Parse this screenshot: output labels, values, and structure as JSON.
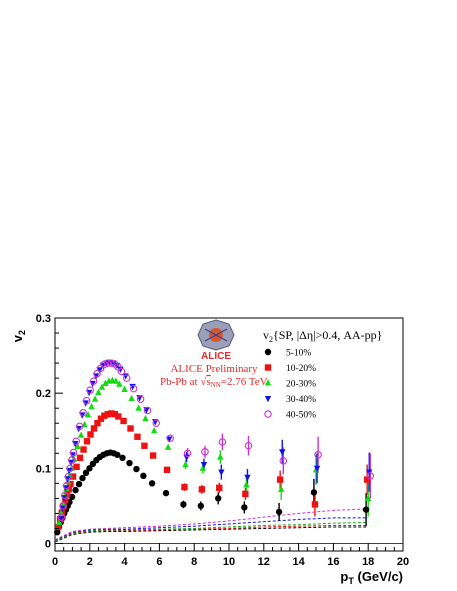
{
  "chart_data": {
    "type": "scatter",
    "xlabel_main": "p",
    "xlabel_sub": "T",
    "xlabel_unit": " (GeV/c)",
    "ylabel_main": "v",
    "ylabel_sub": "2",
    "xlim": [
      0,
      20
    ],
    "ylim": [
      -0.01,
      0.3
    ],
    "xticks": [
      "0",
      "2",
      "4",
      "6",
      "8",
      "10",
      "12",
      "14",
      "16",
      "18",
      "20"
    ],
    "xtick_values": [
      0,
      2,
      4,
      6,
      8,
      10,
      12,
      14,
      16,
      18,
      20
    ],
    "yticks": [
      "0",
      "0.1",
      "0.2",
      "0.3"
    ],
    "ytick_values": [
      0,
      0.1,
      0.2,
      0.3
    ],
    "grid": false,
    "legend_title": "v2{SP, |Δη|>0.4, AA-pp}",
    "legend_title_v": "v",
    "legend_title_sub": "2",
    "legend_title_rest": "{SP, |Δη|>0.4, AA-pp}",
    "legend_placement": "top-right",
    "annotations": {
      "logo": "ALICE",
      "line1": "ALICE Preliminary",
      "line2_a": "Pb-Pb at ",
      "line2_b": "s",
      "line2_c": "NN",
      "line2_d": "=2.76 TeV"
    },
    "series": [
      {
        "name": "5-10%",
        "color": "#000000",
        "marker": "circle",
        "x": [
          0.25,
          0.35,
          0.45,
          0.55,
          0.65,
          0.75,
          0.85,
          0.95,
          1.1,
          1.3,
          1.5,
          1.7,
          1.9,
          2.1,
          2.3,
          2.5,
          2.7,
          2.9,
          3.1,
          3.3,
          3.5,
          3.7,
          4.0,
          4.4,
          4.8,
          5.2,
          5.7,
          6.5,
          7.5,
          8.5,
          9.5,
          11.0,
          13.0,
          15.0,
          18.0
        ],
        "y": [
          0.015,
          0.022,
          0.028,
          0.034,
          0.04,
          0.045,
          0.05,
          0.055,
          0.062,
          0.071,
          0.079,
          0.087,
          0.094,
          0.1,
          0.106,
          0.111,
          0.115,
          0.118,
          0.12,
          0.121,
          0.12,
          0.118,
          0.114,
          0.107,
          0.099,
          0.09,
          0.08,
          0.067,
          0.052,
          0.05,
          0.06,
          0.048,
          0.042,
          0.068,
          0.045
        ],
        "err": [
          0,
          0,
          0,
          0,
          0,
          0,
          0,
          0,
          0,
          0,
          0,
          0,
          0,
          0,
          0,
          0,
          0,
          0,
          0,
          0,
          0,
          0,
          0,
          0,
          0,
          0,
          0,
          0,
          0.005,
          0.006,
          0.008,
          0.008,
          0.012,
          0.018,
          0.022
        ]
      },
      {
        "name": "10-20%",
        "color": "#ee1111",
        "marker": "square",
        "x": [
          0.25,
          0.35,
          0.45,
          0.55,
          0.65,
          0.75,
          0.85,
          0.95,
          1.1,
          1.3,
          1.5,
          1.7,
          1.9,
          2.1,
          2.3,
          2.5,
          2.7,
          2.9,
          3.1,
          3.3,
          3.5,
          3.7,
          4.0,
          4.4,
          4.8,
          5.2,
          5.7,
          6.5,
          7.5,
          8.5,
          9.5,
          11.0,
          13.0,
          15.0,
          18.0
        ],
        "y": [
          0.022,
          0.032,
          0.041,
          0.05,
          0.058,
          0.065,
          0.072,
          0.079,
          0.089,
          0.102,
          0.114,
          0.125,
          0.136,
          0.145,
          0.153,
          0.16,
          0.166,
          0.17,
          0.172,
          0.173,
          0.172,
          0.169,
          0.163,
          0.153,
          0.142,
          0.13,
          0.117,
          0.098,
          0.075,
          0.072,
          0.074,
          0.066,
          0.085,
          0.052,
          0.085
        ],
        "err": [
          0,
          0,
          0,
          0,
          0,
          0,
          0,
          0,
          0,
          0,
          0,
          0,
          0,
          0,
          0,
          0,
          0,
          0,
          0,
          0,
          0,
          0,
          0,
          0,
          0,
          0,
          0,
          0,
          0.005,
          0.006,
          0.007,
          0.008,
          0.012,
          0.016,
          0.02
        ]
      },
      {
        "name": "20-30%",
        "color": "#11dd11",
        "marker": "triangle-up",
        "x": [
          0.25,
          0.35,
          0.45,
          0.55,
          0.65,
          0.75,
          0.85,
          0.95,
          1.1,
          1.3,
          1.5,
          1.7,
          1.9,
          2.1,
          2.3,
          2.5,
          2.7,
          2.9,
          3.1,
          3.3,
          3.5,
          3.7,
          4.0,
          4.4,
          4.8,
          5.2,
          5.7,
          6.5,
          7.5,
          8.5,
          9.5,
          11.0,
          13.0,
          15.0,
          18.0
        ],
        "y": [
          0.028,
          0.04,
          0.052,
          0.063,
          0.073,
          0.082,
          0.091,
          0.1,
          0.112,
          0.129,
          0.144,
          0.158,
          0.171,
          0.182,
          0.192,
          0.201,
          0.208,
          0.213,
          0.216,
          0.217,
          0.216,
          0.212,
          0.205,
          0.193,
          0.18,
          0.166,
          0.15,
          0.128,
          0.105,
          0.1,
          0.115,
          0.078,
          0.072,
          0.098,
          0.06
        ],
        "err": [
          0,
          0,
          0,
          0,
          0,
          0,
          0,
          0,
          0,
          0,
          0,
          0,
          0,
          0,
          0,
          0,
          0,
          0,
          0,
          0,
          0,
          0,
          0,
          0,
          0,
          0,
          0,
          0,
          0.006,
          0.007,
          0.009,
          0.01,
          0.014,
          0.02,
          0.024
        ]
      },
      {
        "name": "30-40%",
        "color": "#1111ee",
        "marker": "triangle-down",
        "x": [
          0.25,
          0.35,
          0.45,
          0.55,
          0.65,
          0.75,
          0.85,
          0.95,
          1.1,
          1.3,
          1.5,
          1.7,
          1.9,
          2.1,
          2.3,
          2.5,
          2.7,
          2.9,
          3.1,
          3.3,
          3.5,
          3.7,
          4.0,
          4.4,
          4.8,
          5.2,
          5.7,
          6.5,
          7.5,
          8.5,
          9.5,
          11.0,
          13.0,
          15.0,
          18.0
        ],
        "y": [
          0.033,
          0.047,
          0.061,
          0.074,
          0.086,
          0.097,
          0.108,
          0.118,
          0.133,
          0.153,
          0.171,
          0.187,
          0.201,
          0.213,
          0.223,
          0.231,
          0.237,
          0.24,
          0.241,
          0.24,
          0.237,
          0.232,
          0.223,
          0.209,
          0.194,
          0.178,
          0.162,
          0.139,
          0.115,
          0.105,
          0.095,
          0.088,
          0.122,
          0.1,
          0.095
        ],
        "err": [
          0,
          0,
          0,
          0,
          0,
          0,
          0,
          0,
          0,
          0,
          0,
          0,
          0,
          0,
          0,
          0,
          0,
          0,
          0,
          0,
          0,
          0,
          0,
          0,
          0,
          0,
          0,
          0,
          0.007,
          0.008,
          0.01,
          0.011,
          0.016,
          0.02,
          0.026
        ]
      },
      {
        "name": "40-50%",
        "color": "#cc33cc",
        "marker": "open-circle",
        "x": [
          0.25,
          0.35,
          0.45,
          0.55,
          0.65,
          0.75,
          0.85,
          0.95,
          1.1,
          1.3,
          1.5,
          1.7,
          1.9,
          2.1,
          2.3,
          2.5,
          2.7,
          2.9,
          3.1,
          3.3,
          3.5,
          3.7,
          4.0,
          4.4,
          4.8,
          5.2,
          5.7,
          6.5,
          7.5,
          8.5,
          9.5,
          11.0,
          13.0,
          15.0,
          18.0
        ],
        "y": [
          0.035,
          0.05,
          0.064,
          0.077,
          0.089,
          0.1,
          0.111,
          0.121,
          0.136,
          0.156,
          0.174,
          0.19,
          0.204,
          0.216,
          0.226,
          0.233,
          0.238,
          0.24,
          0.24,
          0.239,
          0.235,
          0.229,
          0.22,
          0.206,
          0.192,
          0.177,
          0.16,
          0.14,
          0.12,
          0.122,
          0.135,
          0.13,
          0.11,
          0.118,
          0.09
        ],
        "err": [
          0,
          0,
          0,
          0,
          0,
          0,
          0,
          0,
          0,
          0,
          0,
          0,
          0,
          0,
          0,
          0,
          0,
          0,
          0,
          0,
          0,
          0,
          0,
          0,
          0,
          0,
          0,
          0,
          0.007,
          0.008,
          0.011,
          0.013,
          0.018,
          0.024,
          0.03
        ]
      }
    ],
    "baselines": [
      {
        "color": "#000000",
        "x": [
          0,
          1,
          2,
          3,
          4,
          6,
          8,
          10,
          12,
          14,
          16,
          18
        ],
        "y": [
          0.002,
          0.012,
          0.015,
          0.016,
          0.016,
          0.017,
          0.018,
          0.019,
          0.02,
          0.021,
          0.022,
          0.022
        ]
      },
      {
        "color": "#ee1111",
        "x": [
          0,
          1,
          2,
          3,
          4,
          6,
          8,
          10,
          12,
          14,
          16,
          18
        ],
        "y": [
          0.003,
          0.013,
          0.016,
          0.017,
          0.017,
          0.018,
          0.019,
          0.02,
          0.022,
          0.023,
          0.024,
          0.024
        ]
      },
      {
        "color": "#11aa11",
        "x": [
          0,
          1,
          2,
          3,
          4,
          6,
          8,
          10,
          12,
          14,
          16,
          18
        ],
        "y": [
          0.003,
          0.014,
          0.017,
          0.018,
          0.018,
          0.019,
          0.02,
          0.022,
          0.024,
          0.025,
          0.027,
          0.028
        ]
      },
      {
        "color": "#1111ee",
        "x": [
          0,
          1,
          2,
          3,
          4,
          6,
          8,
          10,
          12,
          14,
          16,
          18
        ],
        "y": [
          0.004,
          0.015,
          0.018,
          0.019,
          0.019,
          0.021,
          0.023,
          0.026,
          0.029,
          0.032,
          0.034,
          0.034
        ]
      },
      {
        "color": "#cc33cc",
        "x": [
          0,
          1,
          2,
          3,
          4,
          6,
          8,
          10,
          12,
          14,
          16,
          18
        ],
        "y": [
          0.005,
          0.016,
          0.019,
          0.02,
          0.021,
          0.023,
          0.026,
          0.03,
          0.035,
          0.04,
          0.044,
          0.046
        ]
      }
    ]
  }
}
